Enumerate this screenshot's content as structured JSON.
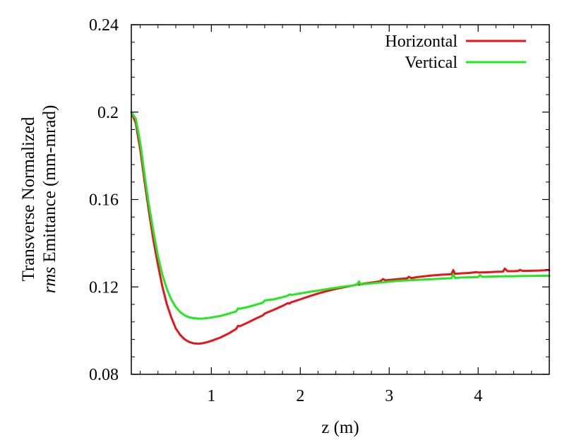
{
  "chart_data": {
    "type": "line",
    "title": "",
    "xlabel": "z (m)",
    "ylabel_line1": "Transverse Normalized",
    "ylabel_line2_italic": "rms",
    "ylabel_line2_rest": " Emittance (mm-mrad)",
    "xlim": [
      0.1,
      4.8
    ],
    "ylim": [
      0.08,
      0.24
    ],
    "xticks": [
      1,
      2,
      3,
      4
    ],
    "yticks": [
      0.08,
      0.12,
      0.16,
      0.2,
      0.24
    ],
    "xtick_labels": [
      "1",
      "2",
      "3",
      "4"
    ],
    "ytick_labels": [
      "0.08",
      "0.12",
      "0.16",
      "0.2",
      "0.24"
    ],
    "grid": false,
    "legend_position": "top-right",
    "series": [
      {
        "name": "Horizontal",
        "color": "#e8141c",
        "x": [
          0.1,
          0.15,
          0.2,
          0.25,
          0.3,
          0.35,
          0.4,
          0.45,
          0.5,
          0.55,
          0.6,
          0.65,
          0.7,
          0.75,
          0.8,
          0.85,
          0.9,
          0.95,
          1.0,
          1.1,
          1.2,
          1.28,
          1.3,
          1.32,
          1.4,
          1.5,
          1.58,
          1.6,
          1.7,
          1.8,
          1.86,
          1.88,
          1.9,
          2.0,
          2.1,
          2.2,
          2.3,
          2.4,
          2.5,
          2.6,
          2.64,
          2.66,
          2.7,
          2.8,
          2.9,
          2.93,
          2.96,
          3.0,
          3.1,
          3.2,
          3.22,
          3.25,
          3.3,
          3.4,
          3.5,
          3.6,
          3.7,
          3.72,
          3.74,
          3.8,
          3.9,
          3.98,
          4.0,
          4.1,
          4.2,
          4.28,
          4.3,
          4.33,
          4.4,
          4.45,
          4.47,
          4.5,
          4.6,
          4.7,
          4.8
        ],
        "y": [
          0.2,
          0.195,
          0.183,
          0.168,
          0.154,
          0.141,
          0.13,
          0.12,
          0.112,
          0.106,
          0.101,
          0.098,
          0.096,
          0.0948,
          0.0942,
          0.094,
          0.0942,
          0.0947,
          0.0953,
          0.0968,
          0.0988,
          0.1008,
          0.1022,
          0.102,
          0.1035,
          0.1055,
          0.107,
          0.1078,
          0.1095,
          0.1113,
          0.1126,
          0.1124,
          0.113,
          0.1143,
          0.1157,
          0.117,
          0.1181,
          0.1191,
          0.1199,
          0.1207,
          0.1212,
          0.121,
          0.1214,
          0.122,
          0.1226,
          0.1236,
          0.123,
          0.1232,
          0.1236,
          0.1239,
          0.1246,
          0.124,
          0.1244,
          0.1249,
          0.1253,
          0.1256,
          0.1258,
          0.1277,
          0.126,
          0.1262,
          0.1264,
          0.1268,
          0.1266,
          0.1267,
          0.1269,
          0.127,
          0.1284,
          0.1272,
          0.1272,
          0.1273,
          0.1278,
          0.1273,
          0.1274,
          0.1275,
          0.1277
        ]
      },
      {
        "name": "Vertical",
        "color": "#22e822",
        "x": [
          0.1,
          0.15,
          0.2,
          0.25,
          0.3,
          0.35,
          0.4,
          0.45,
          0.5,
          0.55,
          0.6,
          0.65,
          0.7,
          0.75,
          0.8,
          0.85,
          0.9,
          0.95,
          1.0,
          1.1,
          1.2,
          1.28,
          1.3,
          1.32,
          1.4,
          1.5,
          1.58,
          1.6,
          1.7,
          1.8,
          1.86,
          1.88,
          1.9,
          2.0,
          2.1,
          2.2,
          2.3,
          2.4,
          2.5,
          2.6,
          2.64,
          2.66,
          2.68,
          2.7,
          2.8,
          2.9,
          3.0,
          3.1,
          3.2,
          3.3,
          3.4,
          3.5,
          3.6,
          3.7,
          3.72,
          3.74,
          3.8,
          3.9,
          4.0,
          4.02,
          4.05,
          4.1,
          4.2,
          4.3,
          4.4,
          4.5,
          4.6,
          4.7,
          4.8
        ],
        "y": [
          0.2,
          0.197,
          0.186,
          0.171,
          0.157,
          0.145,
          0.134,
          0.1255,
          0.119,
          0.1142,
          0.1108,
          0.1085,
          0.107,
          0.1061,
          0.1057,
          0.1055,
          0.1055,
          0.1057,
          0.106,
          0.1067,
          0.1078,
          0.1088,
          0.1102,
          0.11,
          0.1107,
          0.1118,
          0.1128,
          0.1138,
          0.1143,
          0.1153,
          0.116,
          0.1166,
          0.1163,
          0.117,
          0.1177,
          0.1183,
          0.119,
          0.1196,
          0.1202,
          0.1207,
          0.121,
          0.1225,
          0.121,
          0.1212,
          0.1216,
          0.122,
          0.1224,
          0.1228,
          0.123,
          0.1232,
          0.1234,
          0.1236,
          0.1238,
          0.124,
          0.1258,
          0.1241,
          0.1243,
          0.1244,
          0.1245,
          0.1254,
          0.1246,
          0.1247,
          0.1248,
          0.1249,
          0.1249,
          0.125,
          0.125,
          0.1251,
          0.1251
        ]
      }
    ]
  }
}
